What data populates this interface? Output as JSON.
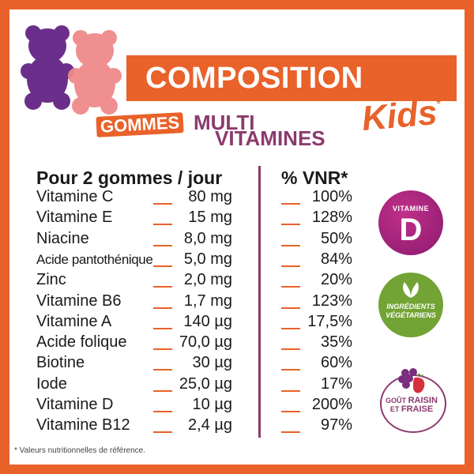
{
  "header": {
    "title": "COMPOSITION",
    "line_gommes": "GOMMES",
    "line_multi": "MULTI",
    "line_vitamines": "VITAMINES",
    "line_kids": "Kids",
    "kids_star": "*"
  },
  "table": {
    "left_header": "Pour 2 gommes / jour",
    "right_header": "% VNR*",
    "rows": [
      {
        "name": "Vitamine C",
        "amount": "80 mg",
        "vnr": "100%"
      },
      {
        "name": "Vitamine E",
        "amount": "15 mg",
        "vnr": "128%"
      },
      {
        "name": "Niacine",
        "amount": "8,0 mg",
        "vnr": "50%"
      },
      {
        "name": "Acide pantothénique",
        "amount": "5,0 mg",
        "vnr": "84%"
      },
      {
        "name": "Zinc",
        "amount": "2,0 mg",
        "vnr": "20%"
      },
      {
        "name": "Vitamine B6",
        "amount": "1,7 mg",
        "vnr": "123%"
      },
      {
        "name": "Vitamine A",
        "amount": "140 µg",
        "vnr": "17,5%"
      },
      {
        "name": "Acide folique",
        "amount": "70,0 µg",
        "vnr": "35%"
      },
      {
        "name": "Biotine",
        "amount": "30 µg",
        "vnr": "60%"
      },
      {
        "name": "Iode",
        "amount": "25,0 µg",
        "vnr": "17%"
      },
      {
        "name": "Vitamine D",
        "amount": "10 µg",
        "vnr": "200%"
      },
      {
        "name": "Vitamine B12",
        "amount": "2,4 µg",
        "vnr": "97%"
      }
    ]
  },
  "badges": {
    "vitd_top": "VITAMINE",
    "vitd_letter": "D",
    "veg_line1": "INGRÉDIENTS",
    "veg_line2": "VÉGÉTARIENS",
    "taste_prefix": "GOÛT",
    "taste_raisin": "RAISIN",
    "taste_et": "ET",
    "taste_fraise": "FRAISE"
  },
  "footnote": "* Valeurs nutritionnelles de référence.",
  "colors": {
    "accent": "#e8622a",
    "purple": "#8b3a6e",
    "green": "#72a334"
  },
  "icons": [
    "gummy-bears-illustration",
    "leaf-icon",
    "grape-strawberry-icon"
  ]
}
